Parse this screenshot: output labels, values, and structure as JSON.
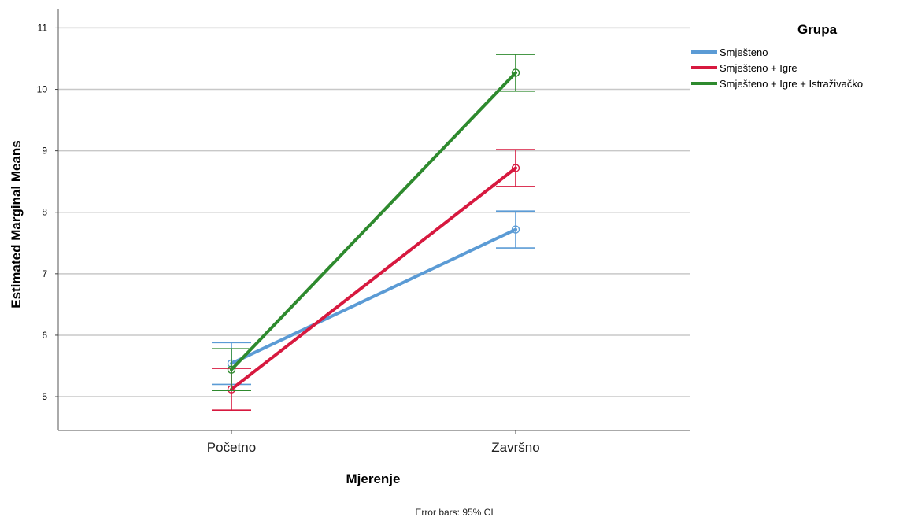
{
  "chart_data": {
    "type": "line",
    "title": "",
    "xlabel": "Mjerenje",
    "ylabel": "Estimated Marginal Means",
    "categories": [
      "Početno",
      "Završno"
    ],
    "y_ticks": [
      5,
      6,
      7,
      8,
      9,
      10,
      11
    ],
    "ylim": [
      4.45,
      11.3
    ],
    "grid": true,
    "legend": {
      "title": "Grupa",
      "placement": "top-right"
    },
    "series": [
      {
        "name": "Smješteno",
        "color": "#5b9bd5",
        "values": [
          5.54,
          7.72
        ],
        "ci_low": [
          5.2,
          7.42
        ],
        "ci_high": [
          5.88,
          8.02
        ]
      },
      {
        "name": "Smješteno + Igre",
        "color": "#d7193f",
        "values": [
          5.12,
          8.72
        ],
        "ci_low": [
          4.78,
          8.42
        ],
        "ci_high": [
          5.46,
          9.02
        ]
      },
      {
        "name": "Smješteno + Igre + Istraživačko",
        "color": "#2e8a2e",
        "values": [
          5.44,
          10.27
        ],
        "ci_low": [
          5.1,
          9.97
        ],
        "ci_high": [
          5.78,
          10.57
        ]
      }
    ],
    "footnote": "Error bars: 95% CI"
  }
}
